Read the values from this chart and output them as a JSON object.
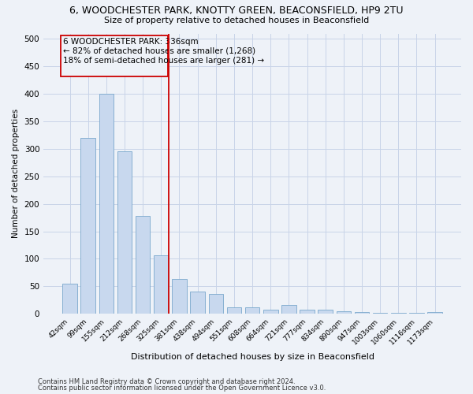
{
  "title": "6, WOODCHESTER PARK, KNOTTY GREEN, BEACONSFIELD, HP9 2TU",
  "subtitle": "Size of property relative to detached houses in Beaconsfield",
  "xlabel": "Distribution of detached houses by size in Beaconsfield",
  "ylabel": "Number of detached properties",
  "categories": [
    "42sqm",
    "99sqm",
    "155sqm",
    "212sqm",
    "268sqm",
    "325sqm",
    "381sqm",
    "438sqm",
    "494sqm",
    "551sqm",
    "608sqm",
    "664sqm",
    "721sqm",
    "777sqm",
    "834sqm",
    "890sqm",
    "947sqm",
    "1003sqm",
    "1060sqm",
    "1116sqm",
    "1173sqm"
  ],
  "values": [
    55,
    320,
    400,
    295,
    178,
    107,
    63,
    41,
    36,
    12,
    12,
    8,
    16,
    7,
    7,
    4,
    3,
    2,
    1,
    1,
    3
  ],
  "bar_color": "#c8d8ee",
  "bar_edge_color": "#7aa8cc",
  "grid_color": "#c8d4e8",
  "bg_color": "#eef2f8",
  "annotation_box_edgecolor": "#cc0000",
  "annotation_vline_color": "#cc0000",
  "annotation_text_line1": "6 WOODCHESTER PARK: 336sqm",
  "annotation_text_line2": "← 82% of detached houses are smaller (1,268)",
  "annotation_text_line3": "18% of semi-detached houses are larger (281) →",
  "ylim": [
    0,
    510
  ],
  "yticks": [
    0,
    50,
    100,
    150,
    200,
    250,
    300,
    350,
    400,
    450,
    500
  ],
  "footer_line1": "Contains HM Land Registry data © Crown copyright and database right 2024.",
  "footer_line2": "Contains public sector information licensed under the Open Government Licence v3.0."
}
